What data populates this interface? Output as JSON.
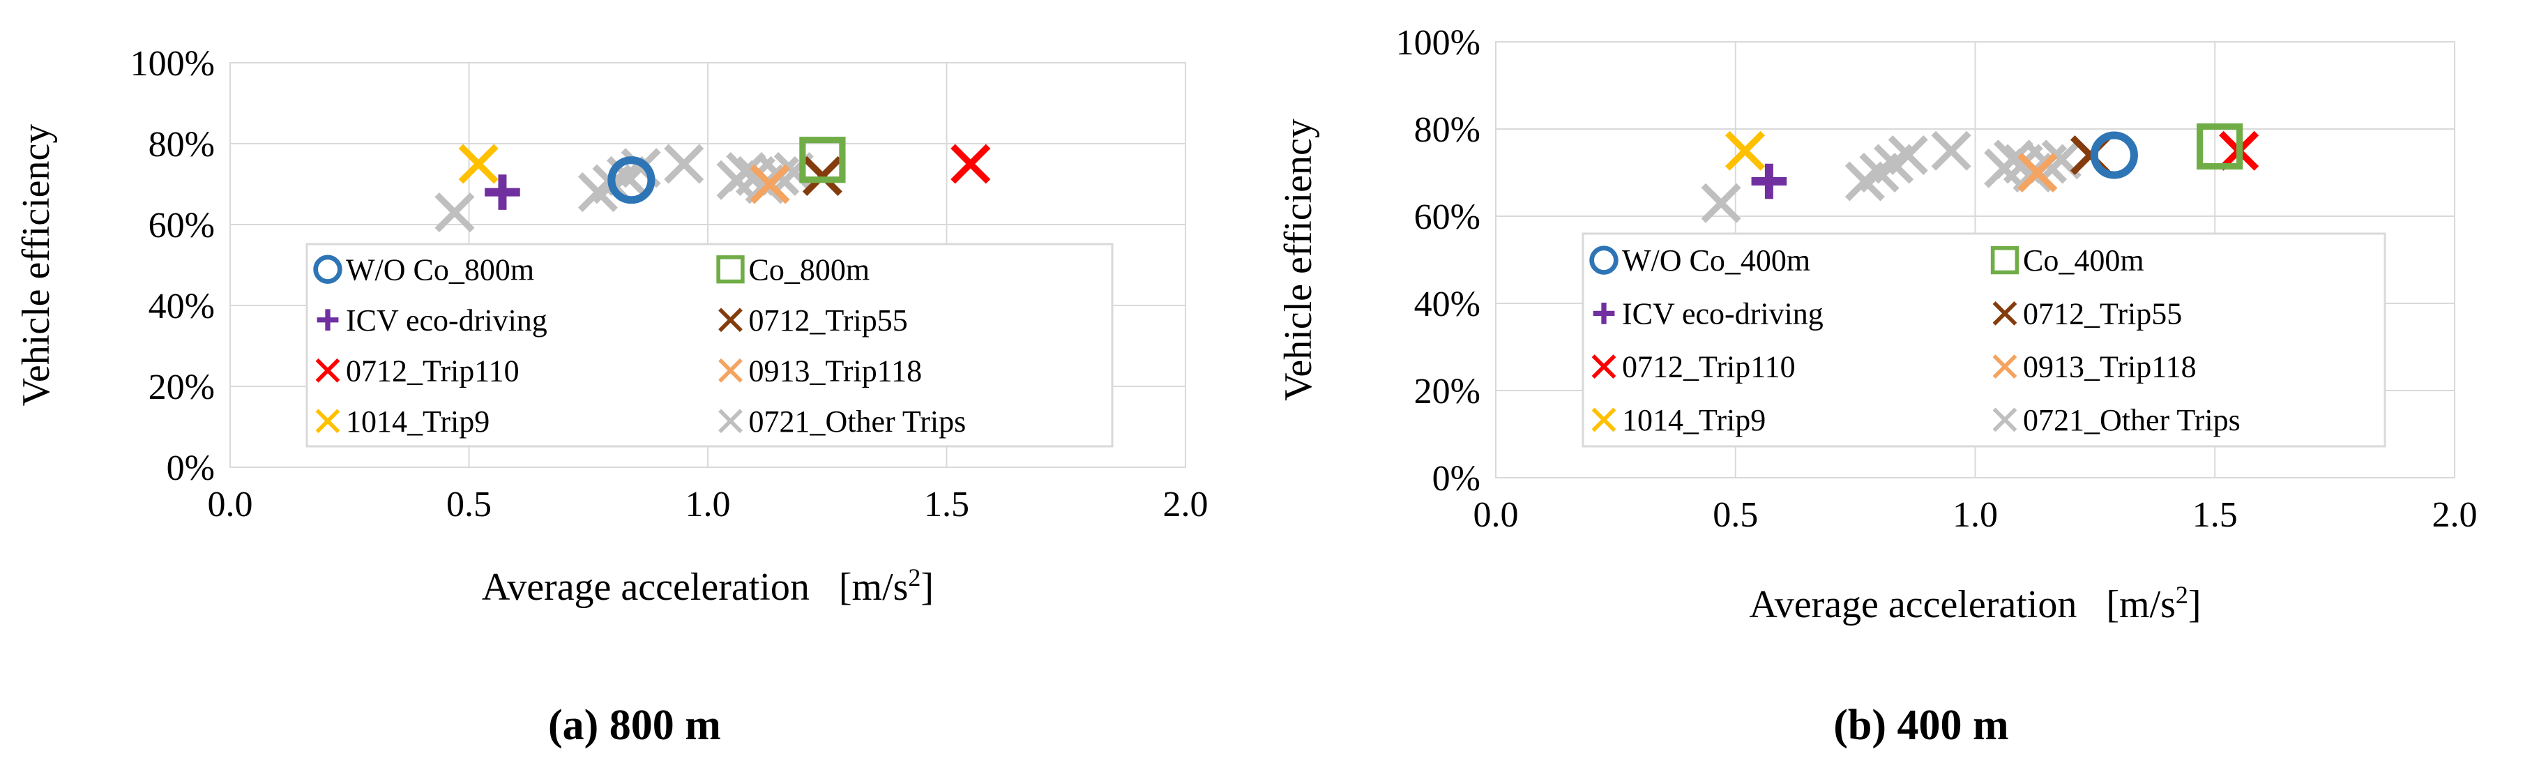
{
  "chart_data": [
    {
      "type": "scatter",
      "caption": "(a) 800 m",
      "xlabel": "Average acceleration",
      "xunit_base": "[m/s",
      "xunit_sup": "2",
      "xunit_end": "]",
      "ylabel": "Vehicle efficiency",
      "xlim": [
        0,
        2
      ],
      "ylim": [
        0,
        1
      ],
      "xticks": [
        "0.0",
        "0.5",
        "1.0",
        "1.5",
        "2.0"
      ],
      "yticks": [
        "0%",
        "20%",
        "40%",
        "60%",
        "80%",
        "100%"
      ],
      "grid": true,
      "legend_position": "inside-bottom",
      "series": [
        {
          "name": "W/O Co_800m",
          "marker": "circle",
          "color": "#2e75b6",
          "points": [
            [
              0.84,
              0.71
            ]
          ]
        },
        {
          "name": "Co_800m",
          "marker": "square",
          "color": "#70ad47",
          "points": [
            [
              1.24,
              0.76
            ]
          ]
        },
        {
          "name": "ICV eco-driving",
          "marker": "plus",
          "color": "#7030a0",
          "points": [
            [
              0.57,
              0.68
            ]
          ]
        },
        {
          "name": "0712_Trip55",
          "marker": "x",
          "color": "#843c0c",
          "points": [
            [
              1.24,
              0.72
            ]
          ]
        },
        {
          "name": "0712_Trip110",
          "marker": "x",
          "color": "#ff0000",
          "points": [
            [
              1.55,
              0.75
            ]
          ]
        },
        {
          "name": "0913_Trip118",
          "marker": "x",
          "color": "#f4a460",
          "points": [
            [
              1.13,
              0.7
            ]
          ]
        },
        {
          "name": "1014_Trip9",
          "marker": "x",
          "color": "#ffc000",
          "points": [
            [
              0.52,
              0.75
            ]
          ]
        },
        {
          "name": "0721_Other Trips",
          "marker": "x",
          "color": "#bfbfbf",
          "points": [
            [
              0.47,
              0.63
            ],
            [
              0.77,
              0.68
            ],
            [
              0.8,
              0.7
            ],
            [
              0.83,
              0.72
            ],
            [
              0.86,
              0.74
            ],
            [
              0.95,
              0.75
            ],
            [
              1.06,
              0.71
            ],
            [
              1.08,
              0.73
            ],
            [
              1.1,
              0.72
            ],
            [
              1.12,
              0.7
            ],
            [
              1.15,
              0.72
            ],
            [
              1.18,
              0.73
            ]
          ]
        }
      ]
    },
    {
      "type": "scatter",
      "caption": "(b) 400 m",
      "xlabel": "Average acceleration",
      "xunit_base": "[m/s",
      "xunit_sup": "2",
      "xunit_end": "]",
      "ylabel": "Vehicle efficiency",
      "xlim": [
        0,
        2
      ],
      "ylim": [
        0,
        1
      ],
      "xticks": [
        "0.0",
        "0.5",
        "1.0",
        "1.5",
        "2.0"
      ],
      "yticks": [
        "0%",
        "20%",
        "40%",
        "60%",
        "80%",
        "100%"
      ],
      "grid": true,
      "legend_position": "inside-bottom",
      "series": [
        {
          "name": "W/O Co_400m",
          "marker": "circle",
          "color": "#2e75b6",
          "points": [
            [
              1.29,
              0.74
            ]
          ]
        },
        {
          "name": "Co_400m",
          "marker": "square",
          "color": "#70ad47",
          "points": [
            [
              1.51,
              0.76
            ]
          ]
        },
        {
          "name": "ICV eco-driving",
          "marker": "plus",
          "color": "#7030a0",
          "points": [
            [
              0.57,
              0.68
            ]
          ]
        },
        {
          "name": "0712_Trip55",
          "marker": "x",
          "color": "#843c0c",
          "points": [
            [
              1.24,
              0.74
            ]
          ]
        },
        {
          "name": "0712_Trip110",
          "marker": "x",
          "color": "#ff0000",
          "points": [
            [
              1.55,
              0.75
            ]
          ]
        },
        {
          "name": "0913_Trip118",
          "marker": "x",
          "color": "#f4a460",
          "points": [
            [
              1.13,
              0.7
            ]
          ]
        },
        {
          "name": "1014_Trip9",
          "marker": "x",
          "color": "#ffc000",
          "points": [
            [
              0.52,
              0.75
            ]
          ]
        },
        {
          "name": "0721_Other Trips",
          "marker": "x",
          "color": "#bfbfbf",
          "points": [
            [
              0.47,
              0.63
            ],
            [
              0.77,
              0.68
            ],
            [
              0.8,
              0.7
            ],
            [
              0.83,
              0.72
            ],
            [
              0.86,
              0.74
            ],
            [
              0.95,
              0.75
            ],
            [
              1.06,
              0.71
            ],
            [
              1.08,
              0.73
            ],
            [
              1.1,
              0.72
            ],
            [
              1.12,
              0.7
            ],
            [
              1.15,
              0.72
            ],
            [
              1.18,
              0.73
            ]
          ]
        }
      ]
    }
  ]
}
